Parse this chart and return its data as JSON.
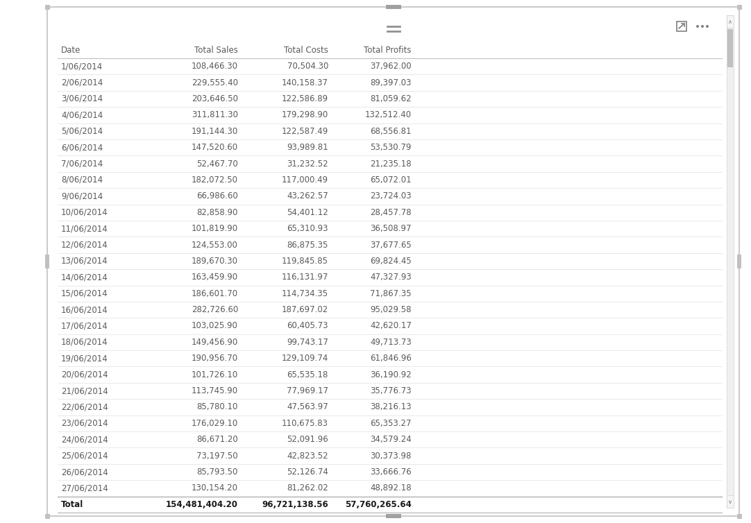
{
  "headers": [
    "Date",
    "Total Sales",
    "Total Costs",
    "Total Profits"
  ],
  "rows": [
    [
      "1/06/2014",
      "108,466.30",
      "70,504.30",
      "37,962.00"
    ],
    [
      "2/06/2014",
      "229,555.40",
      "140,158.37",
      "89,397.03"
    ],
    [
      "3/06/2014",
      "203,646.50",
      "122,586.89",
      "81,059.62"
    ],
    [
      "4/06/2014",
      "311,811.30",
      "179,298.90",
      "132,512.40"
    ],
    [
      "5/06/2014",
      "191,144.30",
      "122,587.49",
      "68,556.81"
    ],
    [
      "6/06/2014",
      "147,520.60",
      "93,989.81",
      "53,530.79"
    ],
    [
      "7/06/2014",
      "52,467.70",
      "31,232.52",
      "21,235.18"
    ],
    [
      "8/06/2014",
      "182,072.50",
      "117,000.49",
      "65,072.01"
    ],
    [
      "9/06/2014",
      "66,986.60",
      "43,262.57",
      "23,724.03"
    ],
    [
      "10/06/2014",
      "82,858.90",
      "54,401.12",
      "28,457.78"
    ],
    [
      "11/06/2014",
      "101,819.90",
      "65,310.93",
      "36,508.97"
    ],
    [
      "12/06/2014",
      "124,553.00",
      "86,875.35",
      "37,677.65"
    ],
    [
      "13/06/2014",
      "189,670.30",
      "119,845.85",
      "69,824.45"
    ],
    [
      "14/06/2014",
      "163,459.90",
      "116,131.97",
      "47,327.93"
    ],
    [
      "15/06/2014",
      "186,601.70",
      "114,734.35",
      "71,867.35"
    ],
    [
      "16/06/2014",
      "282,726.60",
      "187,697.02",
      "95,029.58"
    ],
    [
      "17/06/2014",
      "103,025.90",
      "60,405.73",
      "42,620.17"
    ],
    [
      "18/06/2014",
      "149,456.90",
      "99,743.17",
      "49,713.73"
    ],
    [
      "19/06/2014",
      "190,956.70",
      "129,109.74",
      "61,846.96"
    ],
    [
      "20/06/2014",
      "101,726.10",
      "65,535.18",
      "36,190.92"
    ],
    [
      "21/06/2014",
      "113,745.90",
      "77,969.17",
      "35,776.73"
    ],
    [
      "22/06/2014",
      "85,780.10",
      "47,563.97",
      "38,216.13"
    ],
    [
      "23/06/2014",
      "176,029.10",
      "110,675.83",
      "65,353.27"
    ],
    [
      "24/06/2014",
      "86,671.20",
      "52,091.96",
      "34,579.24"
    ],
    [
      "25/06/2014",
      "73,197.50",
      "42,823.52",
      "30,373.98"
    ],
    [
      "26/06/2014",
      "85,793.50",
      "52,126.74",
      "33,666.76"
    ],
    [
      "27/06/2014",
      "130,154.20",
      "81,262.02",
      "48,892.18"
    ]
  ],
  "total_row": [
    "Total",
    "154,481,404.20",
    "96,721,138.56",
    "57,760,265.64"
  ],
  "text_color": "#5a5a5a",
  "total_text_color": "#1a1a1a",
  "header_text_color": "#5a5a5a",
  "row_line_color": "#e0e0e0",
  "header_line_color": "#c0c0c0",
  "total_line_color": "#b0b0b0",
  "background_color": "#ffffff",
  "panel_border_color": "#c0c0c0",
  "scrollbar_track_color": "#f0f0f0",
  "scrollbar_thumb_color": "#c0c0c0",
  "scrollbar_border_color": "#d0d0d0",
  "icon_color": "#808080",
  "drag_handle_color": "#a0a0a0",
  "corner_square_color": "#c0c0c0",
  "font_size": 8.5,
  "header_font_size": 8.5,
  "total_font_size": 8.5
}
